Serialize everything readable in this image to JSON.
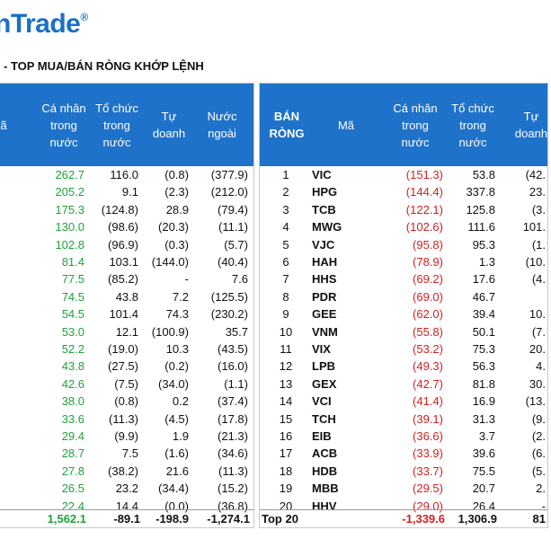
{
  "logo": {
    "text": "nTrade",
    "mark": "®"
  },
  "title": "- TOP MUA/BÁN RÒNG KHỚP LỆNH",
  "left_table": {
    "headers": {
      "ma": "ã",
      "ca_nhan": "Cá nhân trong nước",
      "to_chuc": "Tổ chức trong nước",
      "tu_doanh": "Tự doanh",
      "nuoc_ngoai": "Nước ngoài"
    },
    "rows": [
      {
        "ca_nhan": "262.7",
        "to_chuc": "116.0",
        "tu_doanh": "(0.8)",
        "nuoc_ngoai": "(377.9)"
      },
      {
        "ca_nhan": "205.2",
        "to_chuc": "9.1",
        "tu_doanh": "(2.3)",
        "nuoc_ngoai": "(212.0)"
      },
      {
        "ca_nhan": "175.3",
        "to_chuc": "(124.8)",
        "tu_doanh": "28.9",
        "nuoc_ngoai": "(79.4)"
      },
      {
        "ca_nhan": "130.0",
        "to_chuc": "(98.6)",
        "tu_doanh": "(20.3)",
        "nuoc_ngoai": "(11.1)"
      },
      {
        "ca_nhan": "102.8",
        "to_chuc": "(96.9)",
        "tu_doanh": "(0.3)",
        "nuoc_ngoai": "(5.7)"
      },
      {
        "ca_nhan": "81.4",
        "to_chuc": "103.1",
        "tu_doanh": "(144.0)",
        "nuoc_ngoai": "(40.4)"
      },
      {
        "ca_nhan": "77.5",
        "to_chuc": "(85.2)",
        "tu_doanh": "-",
        "nuoc_ngoai": "7.6"
      },
      {
        "ca_nhan": "74.5",
        "to_chuc": "43.8",
        "tu_doanh": "7.2",
        "nuoc_ngoai": "(125.5)"
      },
      {
        "ca_nhan": "54.5",
        "to_chuc": "101.4",
        "tu_doanh": "74.3",
        "nuoc_ngoai": "(230.2)"
      },
      {
        "ca_nhan": "53.0",
        "to_chuc": "12.1",
        "tu_doanh": "(100.9)",
        "nuoc_ngoai": "35.7"
      },
      {
        "ca_nhan": "52.2",
        "to_chuc": "(19.0)",
        "tu_doanh": "10.3",
        "nuoc_ngoai": "(43.5)"
      },
      {
        "ca_nhan": "43.8",
        "to_chuc": "(27.5)",
        "tu_doanh": "(0.2)",
        "nuoc_ngoai": "(16.0)"
      },
      {
        "ca_nhan": "42.6",
        "to_chuc": "(7.5)",
        "tu_doanh": "(34.0)",
        "nuoc_ngoai": "(1.1)"
      },
      {
        "ca_nhan": "38.0",
        "to_chuc": "(0.8)",
        "tu_doanh": "0.2",
        "nuoc_ngoai": "(37.4)"
      },
      {
        "ca_nhan": "33.6",
        "to_chuc": "(11.3)",
        "tu_doanh": "(4.5)",
        "nuoc_ngoai": "(17.8)"
      },
      {
        "ca_nhan": "29.4",
        "to_chuc": "(9.9)",
        "tu_doanh": "1.9",
        "nuoc_ngoai": "(21.3)"
      },
      {
        "ca_nhan": "28.7",
        "to_chuc": "7.5",
        "tu_doanh": "(1.6)",
        "nuoc_ngoai": "(34.6)"
      },
      {
        "ca_nhan": "27.8",
        "to_chuc": "(38.2)",
        "tu_doanh": "21.6",
        "nuoc_ngoai": "(11.3)"
      },
      {
        "ca_nhan": "26.5",
        "to_chuc": "23.2",
        "tu_doanh": "(34.4)",
        "nuoc_ngoai": "(15.2)"
      },
      {
        "ca_nhan": "22.4",
        "to_chuc": "14.4",
        "tu_doanh": "(0.0)",
        "nuoc_ngoai": "(36.8)"
      }
    ],
    "total": {
      "ca_nhan": "1,562.1",
      "to_chuc": "-89.1",
      "tu_doanh": "-198.9",
      "nuoc_ngoai": "-1,274.1"
    }
  },
  "right_table": {
    "headers": {
      "ban_rong": "BÁN RÒNG",
      "ma": "Mã",
      "ca_nhan": "Cá nhân trong nước",
      "to_chuc": "Tổ chức trong nước",
      "tu_doanh": "Tự doanh"
    },
    "rows": [
      {
        "rank": "1",
        "ma": "VIC",
        "ca_nhan": "(151.3)",
        "to_chuc": "53.8",
        "tu_doanh": "(42."
      },
      {
        "rank": "2",
        "ma": "HPG",
        "ca_nhan": "(144.4)",
        "to_chuc": "337.8",
        "tu_doanh": "23."
      },
      {
        "rank": "3",
        "ma": "TCB",
        "ca_nhan": "(122.1)",
        "to_chuc": "125.8",
        "tu_doanh": "(3."
      },
      {
        "rank": "4",
        "ma": "MWG",
        "ca_nhan": "(102.6)",
        "to_chuc": "111.6",
        "tu_doanh": "101."
      },
      {
        "rank": "5",
        "ma": "VJC",
        "ca_nhan": "(95.8)",
        "to_chuc": "95.3",
        "tu_doanh": "(1."
      },
      {
        "rank": "6",
        "ma": "HAH",
        "ca_nhan": "(78.9)",
        "to_chuc": "1.3",
        "tu_doanh": "(10."
      },
      {
        "rank": "7",
        "ma": "HHS",
        "ca_nhan": "(69.2)",
        "to_chuc": "17.6",
        "tu_doanh": "(4."
      },
      {
        "rank": "8",
        "ma": "PDR",
        "ca_nhan": "(69.0)",
        "to_chuc": "46.7",
        "tu_doanh": ""
      },
      {
        "rank": "9",
        "ma": "GEE",
        "ca_nhan": "(62.0)",
        "to_chuc": "39.4",
        "tu_doanh": "10."
      },
      {
        "rank": "10",
        "ma": "VNM",
        "ca_nhan": "(55.8)",
        "to_chuc": "50.1",
        "tu_doanh": "(7."
      },
      {
        "rank": "11",
        "ma": "VIX",
        "ca_nhan": "(53.2)",
        "to_chuc": "75.3",
        "tu_doanh": "20."
      },
      {
        "rank": "12",
        "ma": "LPB",
        "ca_nhan": "(49.3)",
        "to_chuc": "56.3",
        "tu_doanh": "4."
      },
      {
        "rank": "13",
        "ma": "GEX",
        "ca_nhan": "(42.7)",
        "to_chuc": "81.8",
        "tu_doanh": "30."
      },
      {
        "rank": "14",
        "ma": "VCI",
        "ca_nhan": "(41.4)",
        "to_chuc": "16.9",
        "tu_doanh": "(13."
      },
      {
        "rank": "15",
        "ma": "TCH",
        "ca_nhan": "(39.1)",
        "to_chuc": "31.3",
        "tu_doanh": "(9."
      },
      {
        "rank": "16",
        "ma": "EIB",
        "ca_nhan": "(36.6)",
        "to_chuc": "3.7",
        "tu_doanh": "(2."
      },
      {
        "rank": "17",
        "ma": "ACB",
        "ca_nhan": "(33.9)",
        "to_chuc": "39.6",
        "tu_doanh": "(6."
      },
      {
        "rank": "18",
        "ma": "HDB",
        "ca_nhan": "(33.7)",
        "to_chuc": "75.5",
        "tu_doanh": "(5."
      },
      {
        "rank": "19",
        "ma": "MBB",
        "ca_nhan": "(29.5)",
        "to_chuc": "20.7",
        "tu_doanh": "2."
      },
      {
        "rank": "20",
        "ma": "HHV",
        "ca_nhan": "(29.0)",
        "to_chuc": "26.4",
        "tu_doanh": "-"
      }
    ],
    "total": {
      "label": "Top 20",
      "ca_nhan": "-1,339.6",
      "to_chuc": "1,306.9",
      "tu_doanh": "81"
    }
  },
  "colors": {
    "header_bg": "#1f72c9",
    "positive": "#1fa23a",
    "negative": "#d42020",
    "logo": "#1a6fc9"
  }
}
